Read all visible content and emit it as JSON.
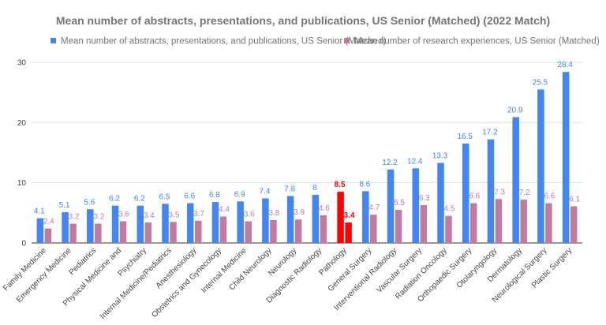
{
  "chart_data": {
    "type": "bar",
    "title": "Mean number of abstracts, presentations, and publications, US Senior (Matched) (2022 Match)",
    "xlabel": "",
    "ylabel": "",
    "ylim": [
      0,
      30
    ],
    "yticks": [
      0,
      10,
      20,
      30
    ],
    "grid": true,
    "legend_position": "top",
    "categories": [
      "Family Medicine",
      "Emergency Medicine",
      "Pediatrics",
      "Physical Medicine and",
      "Psychiatry",
      "Internal Medicine/Pediatrics",
      "Anesthesiology",
      "Obstetrics and Gynecology",
      "Internal Medicine",
      "Child Neurology",
      "Neurology",
      "Diagnostic Radiology",
      "Pathology",
      "General Surgery",
      "Interventional Radiology",
      "Vascular Surgery",
      "Radiation Oncology",
      "Orthopaedic Surgery",
      "Otolaryngology",
      "Dermatology",
      "Neurological Surgery",
      "Plastic Surgery"
    ],
    "series": [
      {
        "name": "Mean number of abstracts, presentations, and publications, US Senior (Matched)",
        "color": "#4285f4",
        "values": [
          4.1,
          5.1,
          5.6,
          6.2,
          6.2,
          6.5,
          6.6,
          6.8,
          6.9,
          7.4,
          7.8,
          8,
          8.5,
          8.6,
          12.2,
          12.4,
          13.3,
          16.5,
          17.2,
          20.9,
          25.5,
          28.4
        ]
      },
      {
        "name": "Mean number of research experiences, US Senior (Matched)",
        "color": "#c27ba0",
        "values": [
          2.4,
          3.2,
          3.2,
          3.6,
          3.4,
          3.5,
          3.7,
          4.4,
          3.6,
          3.8,
          3.9,
          4.6,
          3.4,
          4.7,
          5.5,
          6.3,
          4.5,
          6.6,
          7.3,
          7.2,
          6.6,
          6.1
        ]
      }
    ],
    "highlight": {
      "category_index": 12,
      "color": "#ff0000"
    }
  }
}
